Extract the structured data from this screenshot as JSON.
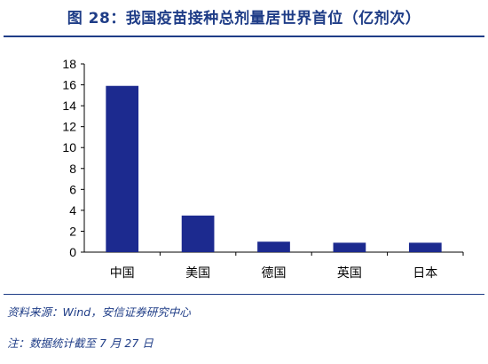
{
  "title": "图 28：我国疫苗接种总剂量居世界首位（亿剂次）",
  "source": "资料来源：Wind，安信证券研究中心",
  "note": "注：数据统计截至 7 月 27 日",
  "colors": {
    "bar": "#1c2a8f",
    "title": "#1f3d87",
    "axis": "#000000"
  },
  "chart_data": {
    "type": "bar",
    "categories": [
      "中国",
      "美国",
      "德国",
      "英国",
      "日本"
    ],
    "values": [
      15.9,
      3.5,
      1.0,
      0.9,
      0.9
    ],
    "ylim": [
      0,
      18
    ],
    "yticks": [
      0,
      2,
      4,
      6,
      8,
      10,
      12,
      14,
      16,
      18
    ],
    "grid": false,
    "legend": "none"
  }
}
